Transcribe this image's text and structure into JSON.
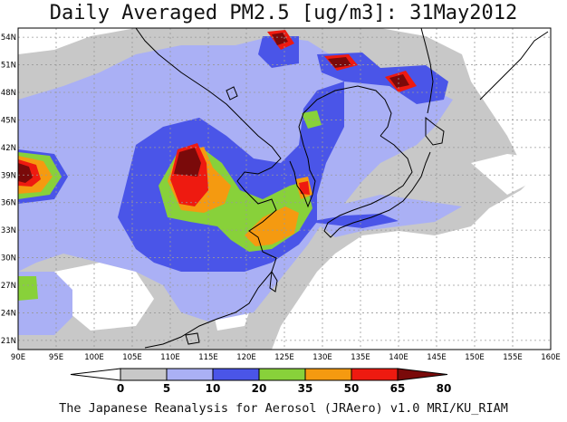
{
  "title": "Daily Averaged PM2.5 [ug/m3]: 31May2012",
  "footer": "The Japanese Reanalysis for Aerosol (JRAero) v1.0 MRI/KU_RIAM",
  "map": {
    "lon_range": [
      90,
      160
    ],
    "lat_range": [
      20,
      55
    ],
    "lon_ticks": [
      "90E",
      "95E",
      "100E",
      "105E",
      "110E",
      "115E",
      "120E",
      "125E",
      "130E",
      "135E",
      "140E",
      "145E",
      "150E",
      "155E",
      "160E"
    ],
    "lat_ticks": [
      "54N",
      "51N",
      "48N",
      "45N",
      "42N",
      "39N",
      "36N",
      "33N",
      "30N",
      "27N",
      "24N",
      "21N"
    ],
    "gridlines": true
  },
  "colorbar": {
    "labels": [
      "0",
      "5",
      "10",
      "20",
      "35",
      "50",
      "65",
      "80"
    ],
    "colors": [
      "#ffffff",
      "#c8c8c8",
      "#aab0f5",
      "#4a55e8",
      "#88d13a",
      "#f59a10",
      "#ee1a10",
      "#7a0a0a"
    ]
  }
}
